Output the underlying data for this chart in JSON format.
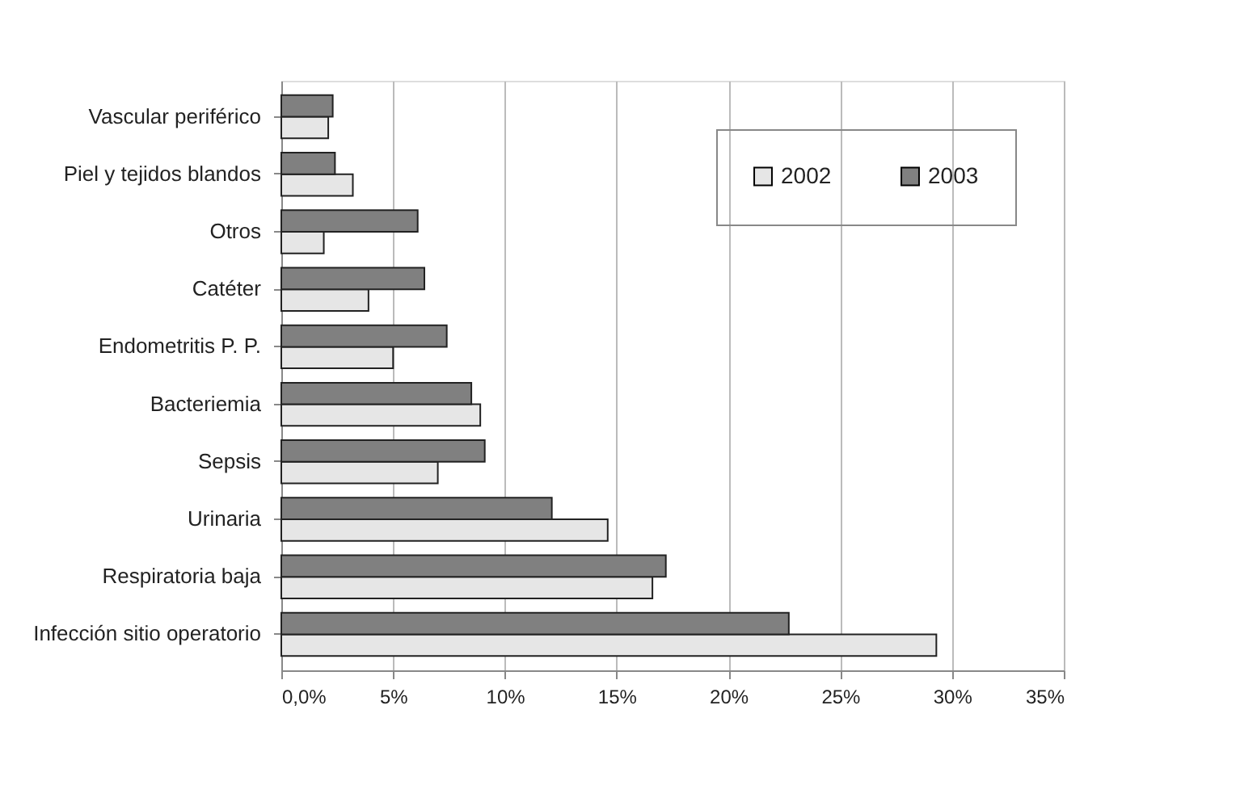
{
  "chart_data": {
    "type": "bar",
    "orientation": "horizontal",
    "categories": [
      "Vascular periférico",
      "Piel y tejidos blandos",
      "Otros",
      "Catéter",
      "Endometritis P. P.",
      "Bacteriemia",
      "Sepsis",
      "Urinaria",
      "Respiratoria baja",
      "Infección sitio operatorio"
    ],
    "series": [
      {
        "name": "2002",
        "color": "#e6e6e6",
        "values": [
          2.1,
          3.2,
          1.9,
          3.9,
          5.0,
          8.9,
          7.0,
          14.6,
          16.6,
          29.3
        ]
      },
      {
        "name": "2003",
        "color": "#808080",
        "values": [
          2.3,
          2.4,
          6.1,
          6.4,
          7.4,
          8.5,
          9.1,
          12.1,
          17.2,
          22.7
        ]
      }
    ],
    "xlim": [
      0,
      35
    ],
    "xticks": [
      {
        "value": 0,
        "label": "0,0%"
      },
      {
        "value": 5,
        "label": "5%"
      },
      {
        "value": 10,
        "label": "10%"
      },
      {
        "value": 15,
        "label": "15%"
      },
      {
        "value": 20,
        "label": "20%"
      },
      {
        "value": 25,
        "label": "25%"
      },
      {
        "value": 30,
        "label": "30%"
      },
      {
        "value": 35,
        "label": "35%"
      }
    ],
    "grid": "x",
    "legend": "top right"
  }
}
